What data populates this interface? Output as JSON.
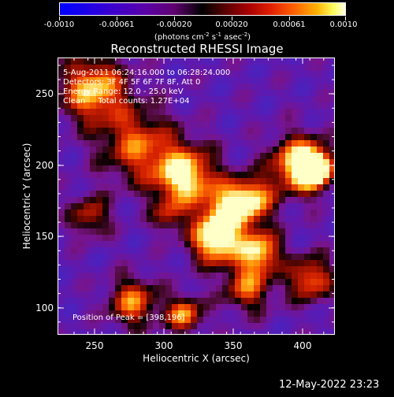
{
  "colorbar": {
    "tick_labels": [
      "-0.0010",
      "-0.00061",
      "-0.00020",
      "0.00020",
      "0.00061",
      "0.0010"
    ],
    "units_prefix": "(photons cm",
    "units_exp1": "-2",
    "units_mid1": " s",
    "units_exp2": "-1",
    "units_mid2": " asec",
    "units_exp3": "-2",
    "units_suffix": ")"
  },
  "title": "Reconstructed RHESSI Image",
  "info": {
    "time_range": "5-Aug-2011 06:24:16.000 to 06:28:24.000",
    "detectors": "Detectors: 3F 4F 5F 6F 7F 8F, Att 0",
    "energy": "Energy Range: 12.0 - 25.0 keV",
    "method": "Clean     Total counts: 1.27E+04"
  },
  "peak_label": "Position of Peak = [398,196]",
  "x_axis": {
    "label": "Heliocentric X (arcsec)",
    "ticks": [
      "250",
      "300",
      "350",
      "400"
    ]
  },
  "y_axis": {
    "label": "Heliocentric Y (arcsec)",
    "ticks": [
      "250",
      "200",
      "150",
      "100"
    ]
  },
  "datestamp": "12-May-2022 23:23",
  "colors": {
    "background": "#000000",
    "foreground": "#ffffff"
  }
}
